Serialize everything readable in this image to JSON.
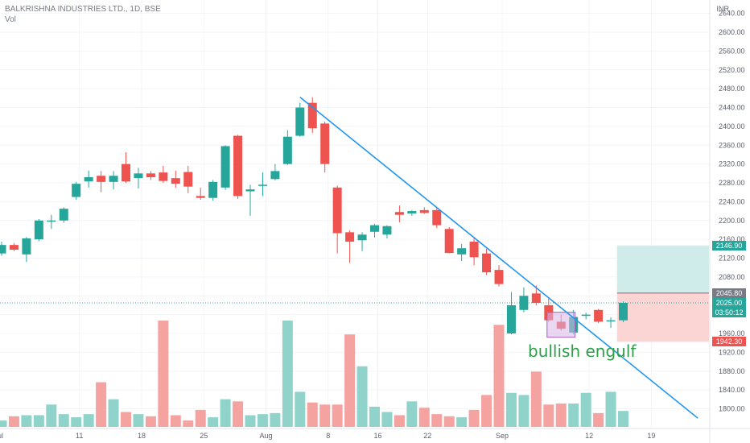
{
  "header": {
    "title": "BALKRISHNA INDUSTRIES LTD., 1D, BSE",
    "volume_label": "Vol"
  },
  "currency": "INR",
  "colors": {
    "up": "#26a69a",
    "down": "#ef5350",
    "up_volume": "#8fd3cb",
    "down_volume": "#f5a3a1",
    "trendline": "#2196f3",
    "annotation": "#2e9e4b",
    "target_zone": "#d0ecea",
    "stop_zone": "#fbd5d4",
    "highlight_box": "#d9b6e6"
  },
  "chart_data": {
    "type": "candlestick",
    "symbol": "BALKRISHNA INDUSTRIES LTD.",
    "interval": "1D",
    "exchange": "BSE",
    "y_axis": {
      "range": [
        1770,
        2650
      ],
      "ticks": [
        1800,
        1840,
        1880,
        1920,
        1960,
        2000,
        2040,
        2080,
        2120,
        2160,
        2200,
        2240,
        2280,
        2320,
        2360,
        2400,
        2440,
        2480,
        2520,
        2560,
        2600,
        2640
      ],
      "tick_labels": [
        "1800.00",
        "1840.00",
        "1880.00",
        "1920.00",
        "1960.00",
        "2000.00",
        "2040.00",
        "2080.00",
        "2120.00",
        "2160.00",
        "2200.00",
        "2240.00",
        "2280.00",
        "2320.00",
        "2360.00",
        "2400.00",
        "2440.00",
        "2480.00",
        "2520.00",
        "2560.00",
        "2600.00",
        "2640.00"
      ]
    },
    "x_axis": {
      "labels": [
        {
          "text": "Jul",
          "index": -0.5
        },
        {
          "text": "11",
          "index": 6
        },
        {
          "text": "18",
          "index": 11
        },
        {
          "text": "25",
          "index": 16
        },
        {
          "text": "Aug",
          "index": 21
        },
        {
          "text": "8",
          "index": 26
        },
        {
          "text": "16",
          "index": 30
        },
        {
          "text": "22",
          "index": 34
        },
        {
          "text": "Sep",
          "index": 40
        },
        {
          "text": "12",
          "index": 47
        },
        {
          "text": "19",
          "index": 52
        }
      ]
    },
    "candles": [
      {
        "o": 2130,
        "h": 2155,
        "l": 2125,
        "c": 2148
      },
      {
        "o": 2148,
        "h": 2152,
        "l": 2135,
        "c": 2138
      },
      {
        "o": 2128,
        "h": 2165,
        "l": 2112,
        "c": 2162
      },
      {
        "o": 2160,
        "h": 2203,
        "l": 2156,
        "c": 2200
      },
      {
        "o": 2198,
        "h": 2212,
        "l": 2182,
        "c": 2200
      },
      {
        "o": 2200,
        "h": 2228,
        "l": 2195,
        "c": 2225
      },
      {
        "o": 2250,
        "h": 2282,
        "l": 2244,
        "c": 2278
      },
      {
        "o": 2283,
        "h": 2306,
        "l": 2270,
        "c": 2292
      },
      {
        "o": 2295,
        "h": 2305,
        "l": 2260,
        "c": 2282
      },
      {
        "o": 2282,
        "h": 2305,
        "l": 2266,
        "c": 2295
      },
      {
        "o": 2320,
        "h": 2345,
        "l": 2280,
        "c": 2283
      },
      {
        "o": 2290,
        "h": 2312,
        "l": 2268,
        "c": 2300
      },
      {
        "o": 2300,
        "h": 2305,
        "l": 2286,
        "c": 2292
      },
      {
        "o": 2302,
        "h": 2316,
        "l": 2280,
        "c": 2284
      },
      {
        "o": 2290,
        "h": 2306,
        "l": 2270,
        "c": 2278
      },
      {
        "o": 2303,
        "h": 2316,
        "l": 2258,
        "c": 2272
      },
      {
        "o": 2252,
        "h": 2270,
        "l": 2244,
        "c": 2248
      },
      {
        "o": 2248,
        "h": 2286,
        "l": 2242,
        "c": 2282
      },
      {
        "o": 2270,
        "h": 2360,
        "l": 2265,
        "c": 2358
      },
      {
        "o": 2380,
        "h": 2382,
        "l": 2246,
        "c": 2252
      },
      {
        "o": 2262,
        "h": 2276,
        "l": 2210,
        "c": 2266
      },
      {
        "o": 2275,
        "h": 2302,
        "l": 2252,
        "c": 2276
      },
      {
        "o": 2288,
        "h": 2320,
        "l": 2285,
        "c": 2305
      },
      {
        "o": 2320,
        "h": 2392,
        "l": 2318,
        "c": 2378
      },
      {
        "o": 2380,
        "h": 2450,
        "l": 2378,
        "c": 2440
      },
      {
        "o": 2450,
        "h": 2462,
        "l": 2386,
        "c": 2396
      },
      {
        "o": 2406,
        "h": 2410,
        "l": 2302,
        "c": 2320
      },
      {
        "o": 2270,
        "h": 2274,
        "l": 2130,
        "c": 2173
      },
      {
        "o": 2175,
        "h": 2179,
        "l": 2110,
        "c": 2155
      },
      {
        "o": 2158,
        "h": 2175,
        "l": 2135,
        "c": 2170
      },
      {
        "o": 2176,
        "h": 2193,
        "l": 2164,
        "c": 2190
      },
      {
        "o": 2170,
        "h": 2190,
        "l": 2162,
        "c": 2188
      },
      {
        "o": 2218,
        "h": 2232,
        "l": 2196,
        "c": 2212
      },
      {
        "o": 2215,
        "h": 2222,
        "l": 2210,
        "c": 2220
      },
      {
        "o": 2222,
        "h": 2228,
        "l": 2214,
        "c": 2216
      },
      {
        "o": 2222,
        "h": 2228,
        "l": 2184,
        "c": 2190
      },
      {
        "o": 2182,
        "h": 2186,
        "l": 2130,
        "c": 2131
      },
      {
        "o": 2128,
        "h": 2150,
        "l": 2114,
        "c": 2141
      },
      {
        "o": 2155,
        "h": 2162,
        "l": 2105,
        "c": 2122
      },
      {
        "o": 2130,
        "h": 2140,
        "l": 2085,
        "c": 2090
      },
      {
        "o": 2095,
        "h": 2105,
        "l": 2060,
        "c": 2065
      },
      {
        "o": 1960,
        "h": 2048,
        "l": 1958,
        "c": 2020
      },
      {
        "o": 2010,
        "h": 2058,
        "l": 2005,
        "c": 2040
      },
      {
        "o": 2045,
        "h": 2062,
        "l": 2020,
        "c": 2025
      },
      {
        "o": 2020,
        "h": 2035,
        "l": 1985,
        "c": 1988
      },
      {
        "o": 1985,
        "h": 2000,
        "l": 1966,
        "c": 1970
      },
      {
        "o": 1962,
        "h": 2010,
        "l": 1958,
        "c": 1995
      },
      {
        "o": 1998,
        "h": 2004,
        "l": 1990,
        "c": 2000
      },
      {
        "o": 2010,
        "h": 2012,
        "l": 1982,
        "c": 1985
      },
      {
        "o": 1988,
        "h": 1994,
        "l": 1972,
        "c": 1988
      },
      {
        "o": 1988,
        "h": 2028,
        "l": 1984,
        "c": 2025
      }
    ],
    "volume_relative": [
      0.06,
      0.1,
      0.11,
      0.11,
      0.21,
      0.12,
      0.09,
      0.12,
      0.42,
      0.26,
      0.14,
      0.12,
      0.1,
      1.0,
      0.11,
      0.06,
      0.16,
      0.09,
      0.26,
      0.24,
      0.11,
      0.12,
      0.13,
      1.0,
      0.33,
      0.23,
      0.21,
      0.21,
      0.87,
      0.57,
      0.19,
      0.14,
      0.11,
      0.24,
      0.18,
      0.12,
      0.1,
      0.09,
      0.16,
      0.3,
      0.96,
      0.32,
      0.3,
      0.52,
      0.21,
      0.22,
      0.22,
      0.32,
      0.13,
      0.33,
      0.15
    ],
    "last_price": 2025.0,
    "countdown": "03:50:12",
    "price_tags": [
      {
        "value": 2146.9,
        "label": "2146.90",
        "kind": "target"
      },
      {
        "value": 2045.8,
        "label": "2045.80",
        "kind": "reference"
      },
      {
        "value": 1942.3,
        "label": "1942.30",
        "kind": "stop"
      }
    ],
    "trendline": {
      "from": {
        "index": 24,
        "price": 2462
      },
      "to": {
        "index": 56,
        "price": 1780
      }
    },
    "annotation": {
      "text": "bullish engulf",
      "index_range": [
        44,
        46
      ]
    },
    "position_tool": {
      "entry": 2045.8,
      "target": 2146.9,
      "stop": 1942.3,
      "index_range": [
        49.5,
        57
      ]
    }
  }
}
